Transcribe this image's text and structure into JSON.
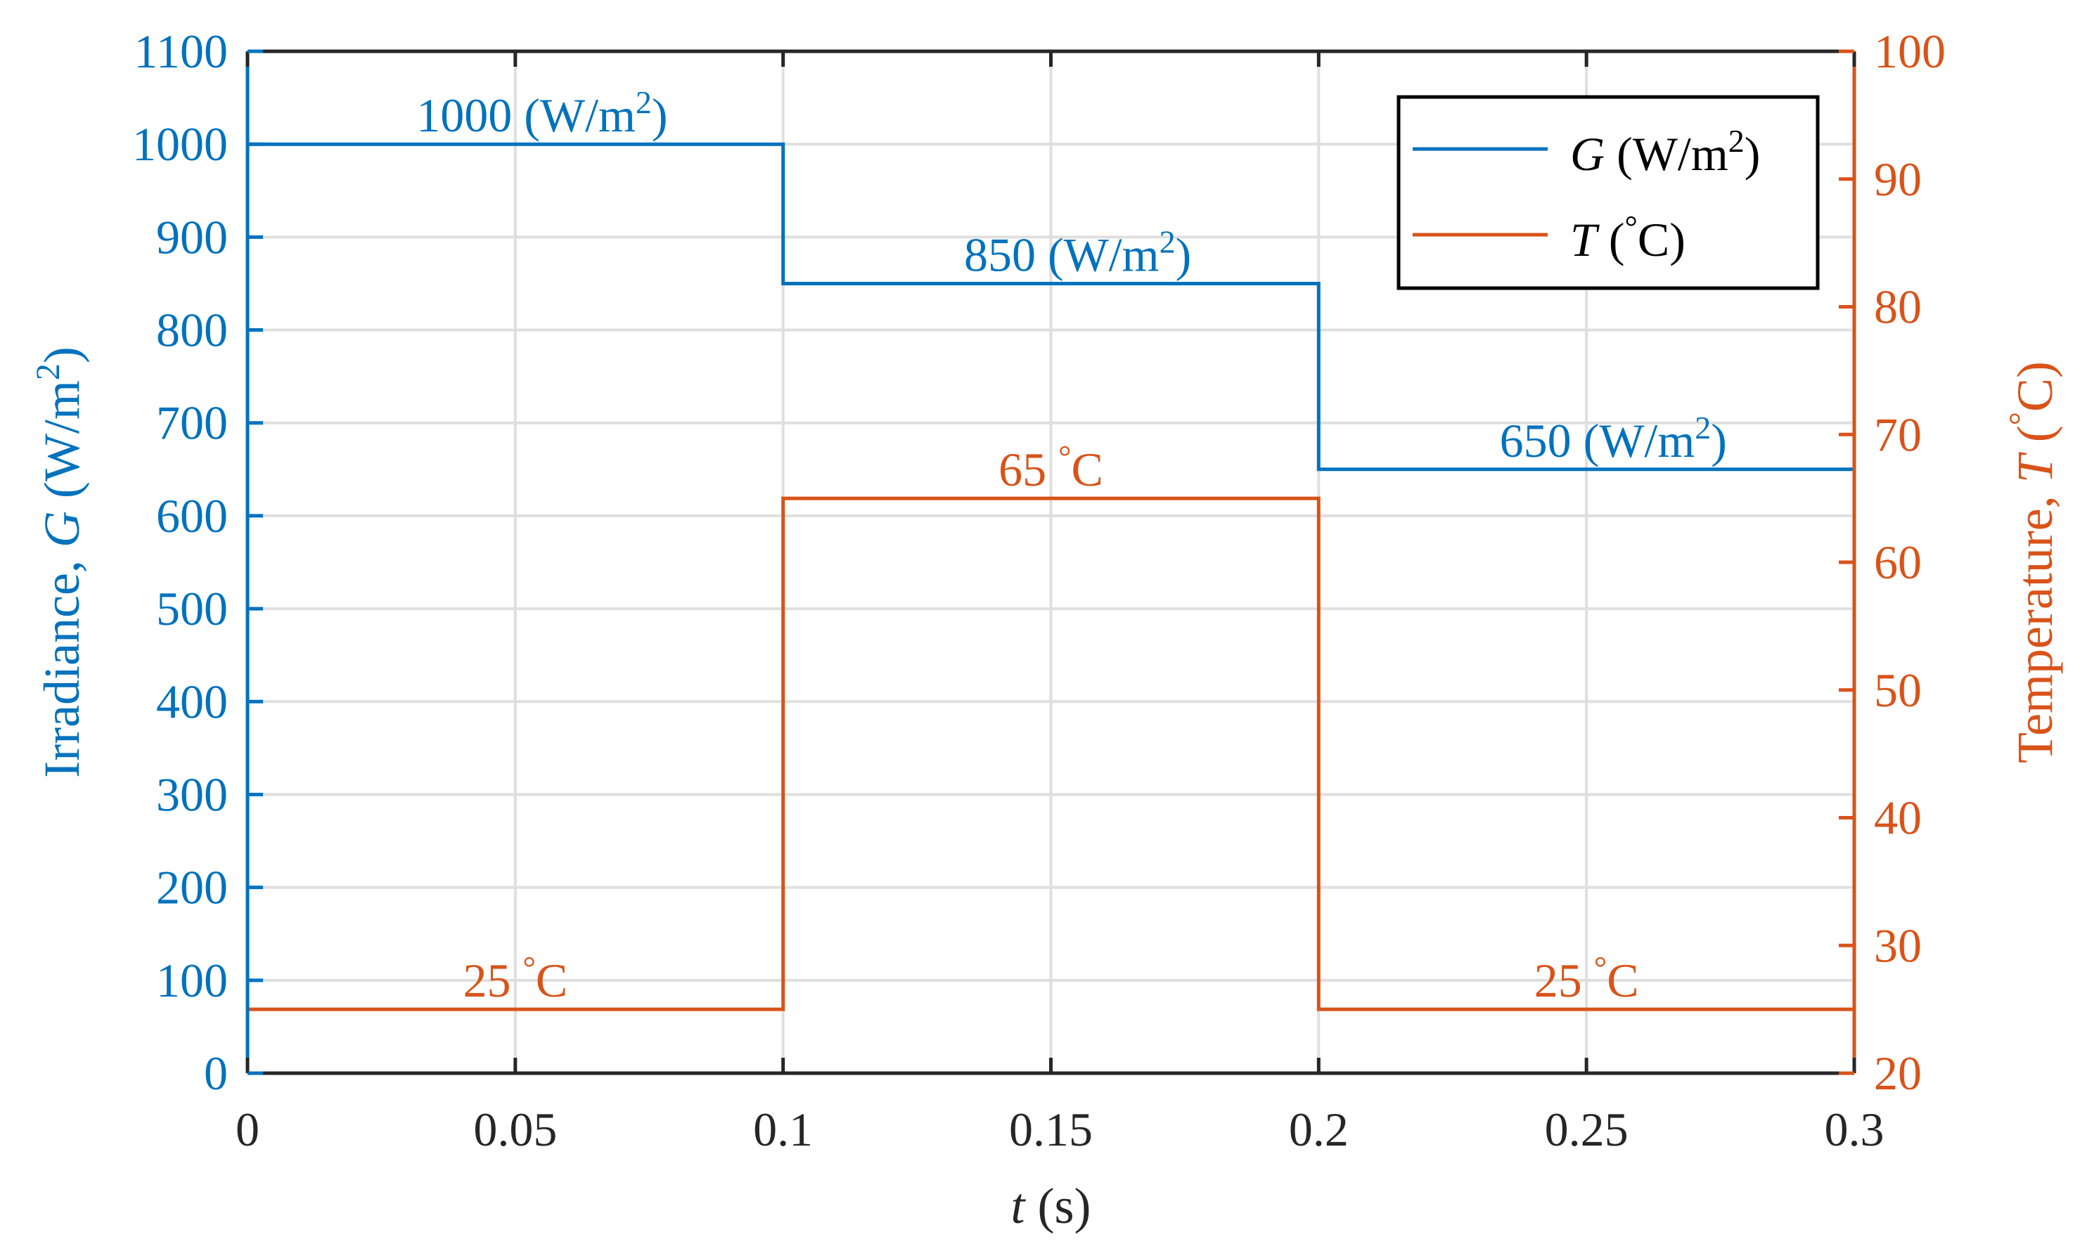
{
  "chart_data": {
    "type": "line",
    "step": true,
    "x_axis": {
      "label_var": "t",
      "label_unit": " (s)",
      "lim": [
        0,
        0.3
      ],
      "ticks": [
        0,
        0.05,
        0.1,
        0.15,
        0.2,
        0.25,
        0.3
      ],
      "tick_labels": [
        "0",
        "0.05",
        "0.1",
        "0.15",
        "0.2",
        "0.25",
        "0.3"
      ]
    },
    "y_left": {
      "label_prefix": "Irradiance, ",
      "label_var": "G",
      "label_unit": " (W/m",
      "label_sup": "2",
      "label_close": ")",
      "lim": [
        0,
        1100
      ],
      "ticks": [
        0,
        100,
        200,
        300,
        400,
        500,
        600,
        700,
        800,
        900,
        1000,
        1100
      ],
      "tick_labels": [
        "0",
        "100",
        "200",
        "300",
        "400",
        "500",
        "600",
        "700",
        "800",
        "900",
        "1000",
        "1100"
      ]
    },
    "y_right": {
      "label_prefix": "Temperature, ",
      "label_var": "T",
      "label_unit": " (",
      "label_sup": "°",
      "label_close": "C)",
      "lim": [
        20,
        100
      ],
      "ticks": [
        20,
        30,
        40,
        50,
        60,
        70,
        80,
        90,
        100
      ],
      "tick_labels": [
        "20",
        "30",
        "40",
        "50",
        "60",
        "70",
        "80",
        "90",
        "100"
      ]
    },
    "grid": true,
    "legend_position": "top-right",
    "series": [
      {
        "name": "G",
        "legend_var": "G",
        "legend_unit": " (W/m",
        "legend_sup": "2",
        "legend_close": ")",
        "axis": "left",
        "color": "#0072BD",
        "x": [
          0,
          0.1,
          0.1,
          0.2,
          0.2,
          0.3
        ],
        "y": [
          1000,
          1000,
          850,
          850,
          650,
          650
        ]
      },
      {
        "name": "T",
        "legend_var": "T",
        "legend_unit": " (",
        "legend_sup": "°",
        "legend_close": "C)",
        "axis": "right",
        "color": "#D95319",
        "x": [
          0,
          0.1,
          0.1,
          0.2,
          0.2,
          0.3
        ],
        "y": [
          25,
          25,
          65,
          65,
          25,
          25
        ]
      }
    ],
    "annotations": [
      {
        "axis": "left",
        "color": "#0072BD",
        "x": 0.055,
        "y": 1000,
        "main": "1000 (W/m",
        "sup": "2",
        "close": ")"
      },
      {
        "axis": "left",
        "color": "#0072BD",
        "x": 0.155,
        "y": 850,
        "main": "850 (W/m",
        "sup": "2",
        "close": ")"
      },
      {
        "axis": "left",
        "color": "#0072BD",
        "x": 0.255,
        "y": 650,
        "main": "650 (W/m",
        "sup": "2",
        "close": ")"
      },
      {
        "axis": "right",
        "color": "#D95319",
        "x": 0.05,
        "y": 25,
        "main": "25 ",
        "sup": "°",
        "close": "C"
      },
      {
        "axis": "right",
        "color": "#D95319",
        "x": 0.15,
        "y": 65,
        "main": "65 ",
        "sup": "°",
        "close": "C"
      },
      {
        "axis": "right",
        "color": "#D95319",
        "x": 0.25,
        "y": 25,
        "main": "25 ",
        "sup": "°",
        "close": "C"
      }
    ],
    "colors": {
      "left_axis": "#0072BD",
      "right_axis": "#D95319",
      "grid": "#DFDFDF",
      "frame": "#262626"
    }
  }
}
